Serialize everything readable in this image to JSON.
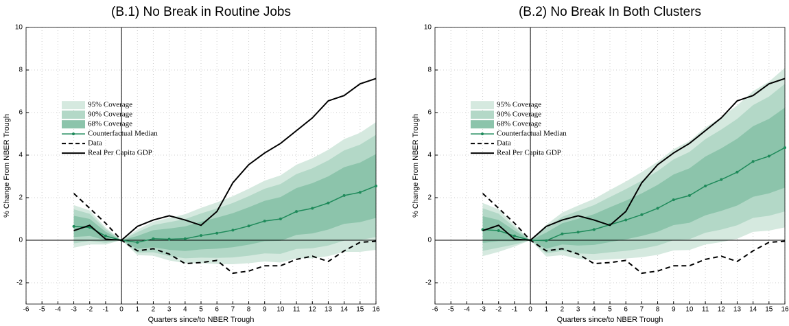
{
  "chart_data": [
    {
      "type": "line",
      "title": "(B.1) No Break in Routine Jobs",
      "xlabel": "Quarters since/to NBER Trough",
      "ylabel": "% Change From NBER Trough",
      "xlim": [
        -6,
        16
      ],
      "ylim": [
        -3,
        10
      ],
      "xticks": [
        -6,
        -5,
        -4,
        -3,
        -2,
        -1,
        0,
        1,
        2,
        3,
        4,
        5,
        6,
        7,
        8,
        9,
        10,
        11,
        12,
        13,
        14,
        15,
        16
      ],
      "yticks": [
        -2,
        0,
        2,
        4,
        6,
        8,
        10
      ],
      "grid": true,
      "legend": "center left",
      "x": [
        -3,
        -2,
        -1,
        0,
        1,
        2,
        3,
        4,
        5,
        6,
        7,
        8,
        9,
        10,
        11,
        12,
        13,
        14,
        15,
        16
      ],
      "bands": [
        {
          "name": "95% Coverage",
          "color": "#d5e9df",
          "lower": [
            -0.35,
            -0.2,
            -0.2,
            0,
            -0.7,
            -0.73,
            -0.95,
            -1.08,
            -1.08,
            -1.12,
            -1.13,
            -1.08,
            -1.0,
            -1.05,
            -0.85,
            -0.85,
            -0.75,
            -0.55,
            -0.55,
            -0.45
          ],
          "upper": [
            1.65,
            1.4,
            0.6,
            0,
            0.5,
            0.87,
            1.05,
            1.22,
            1.52,
            1.78,
            2.07,
            2.42,
            2.8,
            3.05,
            3.55,
            3.85,
            4.25,
            4.75,
            5.05,
            5.55
          ]
        },
        {
          "name": "90% Coverage",
          "color": "#b3d8c7",
          "lower": [
            -0.15,
            -0.04,
            -0.12,
            0,
            -0.58,
            -0.57,
            -0.75,
            -0.85,
            -0.82,
            -0.83,
            -0.81,
            -0.73,
            -0.62,
            -0.64,
            -0.41,
            -0.38,
            -0.25,
            -0.02,
            0.01,
            0.15
          ],
          "upper": [
            1.45,
            1.24,
            0.52,
            0,
            0.38,
            0.71,
            0.85,
            0.99,
            1.26,
            1.49,
            1.75,
            2.07,
            2.42,
            2.64,
            3.11,
            3.38,
            3.75,
            4.22,
            4.49,
            4.95
          ]
        },
        {
          "name": "68% Coverage",
          "color": "#8cc4ab",
          "lower": [
            0.15,
            0.2,
            0,
            0,
            -0.4,
            -0.33,
            -0.45,
            -0.51,
            -0.43,
            -0.4,
            -0.33,
            -0.21,
            -0.05,
            -0.03,
            0.25,
            0.32,
            0.5,
            0.77,
            0.85,
            1.05
          ],
          "upper": [
            1.15,
            1.0,
            0.4,
            0,
            0.2,
            0.47,
            0.55,
            0.65,
            0.87,
            1.06,
            1.27,
            1.55,
            1.85,
            2.03,
            2.45,
            2.68,
            3.0,
            3.43,
            3.65,
            4.05
          ]
        }
      ],
      "series": [
        {
          "name": "Counterfactual Median",
          "color": "#1e8a5a",
          "marker": true,
          "values": [
            0.65,
            0.6,
            0.2,
            0,
            -0.1,
            0.07,
            0.05,
            0.07,
            0.22,
            0.33,
            0.47,
            0.67,
            0.9,
            1.0,
            1.35,
            1.5,
            1.75,
            2.1,
            2.25,
            2.55
          ]
        },
        {
          "name": "Data",
          "color": "#000000",
          "dash": true,
          "values": [
            2.2,
            1.5,
            0.8,
            0,
            -0.5,
            -0.4,
            -0.65,
            -1.1,
            -1.05,
            -0.95,
            -1.55,
            -1.45,
            -1.2,
            -1.2,
            -0.9,
            -0.75,
            -1.0,
            -0.5,
            -0.1,
            -0.05
          ]
        },
        {
          "name": "Real Per Capita GDP",
          "color": "#000000",
          "values": [
            0.45,
            0.7,
            0.05,
            0,
            0.65,
            0.95,
            1.15,
            0.95,
            0.7,
            1.35,
            2.7,
            3.55,
            4.1,
            4.55,
            5.15,
            5.75,
            6.55,
            6.8,
            7.35,
            7.6
          ]
        }
      ]
    },
    {
      "type": "line",
      "title": "(B.2) No Break In Both Clusters",
      "xlabel": "Quarters since/to NBER Trough",
      "ylabel": "% Change From NBER Trough",
      "xlim": [
        -6,
        16
      ],
      "ylim": [
        -3,
        10
      ],
      "xticks": [
        -6,
        -5,
        -4,
        -3,
        -2,
        -1,
        0,
        1,
        2,
        3,
        4,
        5,
        6,
        7,
        8,
        9,
        10,
        11,
        12,
        13,
        14,
        15,
        16
      ],
      "yticks": [
        -2,
        0,
        2,
        4,
        6,
        8,
        10
      ],
      "grid": true,
      "legend": "center left",
      "x": [
        -3,
        -2,
        -1,
        0,
        1,
        2,
        3,
        4,
        5,
        6,
        7,
        8,
        9,
        10,
        11,
        12,
        13,
        14,
        15,
        16
      ],
      "bands": [
        {
          "name": "95% Coverage",
          "color": "#d5e9df",
          "lower": [
            -0.75,
            -0.55,
            -0.3,
            0,
            -0.77,
            -0.7,
            -0.87,
            -0.94,
            -0.9,
            -0.86,
            -0.8,
            -0.69,
            -0.48,
            -0.46,
            -0.2,
            -0.09,
            0.07,
            0.39,
            0.45,
            0.6
          ],
          "upper": [
            1.75,
            1.45,
            0.7,
            0,
            0.73,
            1.3,
            1.63,
            1.94,
            2.36,
            2.76,
            3.2,
            3.69,
            4.28,
            4.66,
            5.3,
            5.79,
            6.33,
            7.01,
            7.45,
            8.1
          ]
        },
        {
          "name": "90% Coverage",
          "color": "#b3d8c7",
          "lower": [
            -0.5,
            -0.35,
            -0.2,
            0,
            -0.62,
            -0.5,
            -0.62,
            -0.65,
            -0.57,
            -0.5,
            -0.4,
            -0.25,
            0.0,
            0.05,
            0.35,
            0.5,
            0.7,
            1.05,
            1.15,
            1.35
          ],
          "upper": [
            1.5,
            1.25,
            0.6,
            0,
            0.58,
            1.1,
            1.38,
            1.65,
            2.03,
            2.4,
            2.8,
            3.25,
            3.8,
            4.15,
            4.75,
            5.2,
            5.7,
            6.35,
            6.75,
            7.35
          ]
        },
        {
          "name": "68% Coverage",
          "color": "#8cc4ab",
          "lower": [
            -0.13,
            -0.05,
            -0.05,
            0,
            -0.4,
            -0.2,
            -0.25,
            -0.22,
            -0.09,
            0.04,
            0.2,
            0.4,
            0.71,
            0.82,
            1.17,
            1.38,
            1.63,
            2.04,
            2.2,
            2.47
          ],
          "upper": [
            1.13,
            0.95,
            0.45,
            0,
            0.36,
            0.8,
            1.01,
            1.22,
            1.55,
            1.86,
            2.2,
            2.6,
            3.09,
            3.38,
            3.93,
            4.32,
            4.77,
            5.36,
            5.7,
            6.23
          ]
        }
      ],
      "series": [
        {
          "name": "Counterfactual Median",
          "color": "#1e8a5a",
          "marker": true,
          "values": [
            0.5,
            0.45,
            0.2,
            0,
            -0.02,
            0.3,
            0.38,
            0.5,
            0.73,
            0.95,
            1.2,
            1.5,
            1.9,
            2.1,
            2.55,
            2.85,
            3.2,
            3.7,
            3.95,
            4.35
          ]
        },
        {
          "name": "Data",
          "color": "#000000",
          "dash": true,
          "values": [
            2.2,
            1.5,
            0.8,
            0,
            -0.5,
            -0.4,
            -0.65,
            -1.1,
            -1.05,
            -0.95,
            -1.55,
            -1.45,
            -1.2,
            -1.2,
            -0.9,
            -0.75,
            -1.0,
            -0.5,
            -0.1,
            -0.05
          ]
        },
        {
          "name": "Real Per Capita GDP",
          "color": "#000000",
          "values": [
            0.45,
            0.7,
            0.05,
            0,
            0.65,
            0.95,
            1.15,
            0.95,
            0.7,
            1.35,
            2.7,
            3.55,
            4.1,
            4.55,
            5.15,
            5.75,
            6.55,
            6.8,
            7.35,
            7.6
          ]
        }
      ]
    }
  ]
}
